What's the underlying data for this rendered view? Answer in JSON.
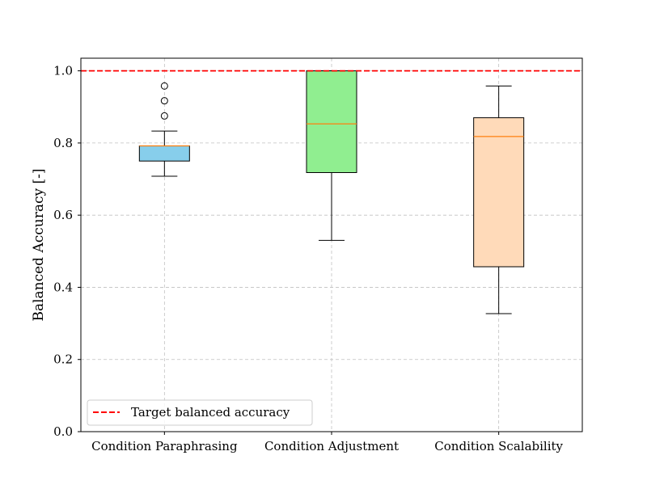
{
  "chart_data": {
    "type": "box",
    "title": "",
    "xlabel": "",
    "ylabel": "Balanced Accuracy [-]",
    "ylim": [
      0.0,
      1.035
    ],
    "yticks": [
      0.0,
      0.2,
      0.4,
      0.6,
      0.8,
      1.0
    ],
    "ytick_labels": [
      "0.0",
      "0.2",
      "0.4",
      "0.6",
      "0.8",
      "1.0"
    ],
    "grid": true,
    "legend_position": "lower-left",
    "reference_line": {
      "label": "Target balanced accuracy",
      "y": 1.0,
      "color": "#ff0000",
      "style": "dashed"
    },
    "categories": [
      "Condition Paraphrasing",
      "Condition Adjustment",
      "Condition Scalability"
    ],
    "boxes": [
      {
        "name": "Condition Paraphrasing",
        "whisker_low": 0.708,
        "q1": 0.75,
        "median": 0.792,
        "q3": 0.792,
        "whisker_high": 0.833,
        "outliers": [
          0.875,
          0.917,
          0.958
        ],
        "color": "#87ceeb"
      },
      {
        "name": "Condition Adjustment",
        "whisker_low": 0.53,
        "q1": 0.718,
        "median": 0.853,
        "q3": 1.0,
        "whisker_high": 1.0,
        "outliers": [],
        "color": "#90ee90"
      },
      {
        "name": "Condition Scalability",
        "whisker_low": 0.327,
        "q1": 0.457,
        "median": 0.818,
        "q3": 0.87,
        "whisker_high": 0.958,
        "outliers": [],
        "color": "#ffdab9"
      }
    ],
    "median_color": "#ff7f0e"
  }
}
